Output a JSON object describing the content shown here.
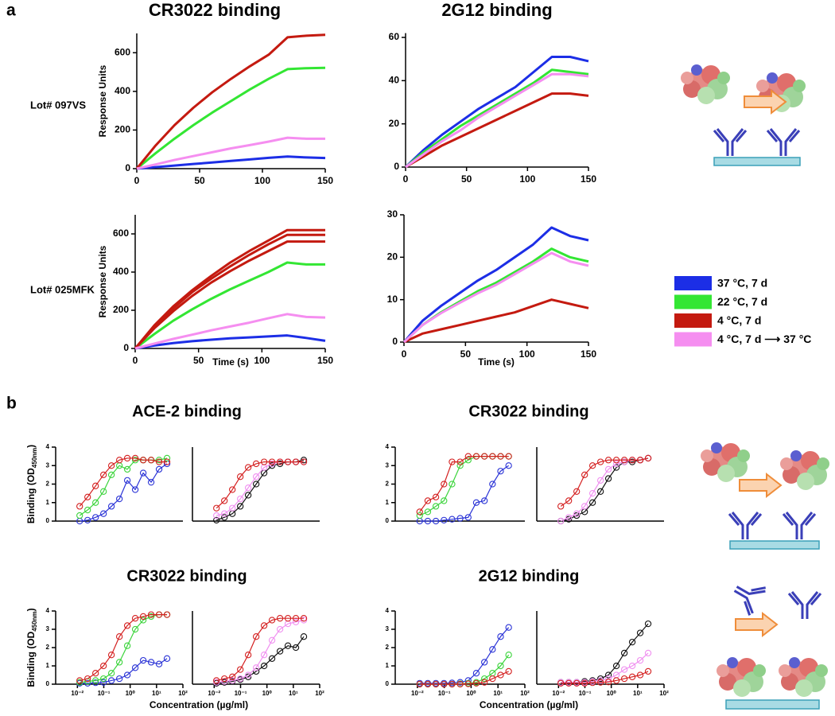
{
  "panel_labels": [
    "a",
    "b"
  ],
  "row_labels": [
    "Lot# 097VS",
    "Lot# 025MFK"
  ],
  "chart_data": [
    {
      "type": "line",
      "title": "CR3022 binding",
      "y_label": "Response Units",
      "x": [
        0,
        15,
        30,
        45,
        60,
        75,
        90,
        105,
        120,
        135,
        150
      ],
      "xlim": [
        0,
        150
      ],
      "xticks": [
        0,
        50,
        100,
        150
      ],
      "ylim": [
        0,
        700
      ],
      "yticks": [
        0,
        200,
        400,
        600
      ],
      "grid": false,
      "series": [
        {
          "name": "37 °C, 7 d",
          "color": "#1c2ee6",
          "values": [
            0,
            8,
            16,
            24,
            32,
            40,
            48,
            56,
            63,
            58,
            55
          ]
        },
        {
          "name": "22 °C, 7 d",
          "color": "#33e633",
          "values": [
            0,
            80,
            155,
            225,
            290,
            350,
            410,
            465,
            515,
            520,
            522
          ]
        },
        {
          "name": "4 °C, 7 d",
          "color": "#c41a10",
          "values": [
            0,
            120,
            225,
            315,
            395,
            465,
            530,
            590,
            680,
            688,
            693
          ]
        },
        {
          "name": "4 °C, 7 d ⟶ 37 °C",
          "color": "#f58ef0",
          "values": [
            0,
            22,
            45,
            65,
            85,
            105,
            122,
            140,
            160,
            155,
            155
          ]
        }
      ]
    },
    {
      "type": "line",
      "title": "2G12 binding",
      "x": [
        0,
        15,
        30,
        45,
        60,
        75,
        90,
        105,
        120,
        135,
        150
      ],
      "xlim": [
        0,
        150
      ],
      "xticks": [
        0,
        50,
        100,
        150
      ],
      "ylim": [
        0,
        62
      ],
      "yticks": [
        0,
        20,
        40,
        60
      ],
      "grid": false,
      "series": [
        {
          "color": "#1c2ee6",
          "values": [
            0,
            8,
            15,
            21,
            27,
            32,
            37,
            44,
            51,
            51,
            49
          ]
        },
        {
          "color": "#33e633",
          "values": [
            0,
            7,
            13,
            19,
            24,
            29,
            34,
            39,
            45,
            44,
            43
          ]
        },
        {
          "color": "#c41a10",
          "values": [
            0,
            5,
            10,
            14,
            18,
            22,
            26,
            30,
            34,
            34,
            33
          ]
        },
        {
          "color": "#f58ef0",
          "values": [
            0,
            6,
            12,
            17,
            23,
            28,
            33,
            38,
            43,
            43,
            42
          ]
        }
      ]
    },
    {
      "type": "line",
      "y_label": "Response Units",
      "x_label": "Time (s)",
      "x": [
        0,
        15,
        30,
        45,
        60,
        75,
        90,
        105,
        120,
        135,
        150
      ],
      "xlim": [
        0,
        150
      ],
      "xticks": [
        0,
        50,
        100,
        150
      ],
      "ylim": [
        0,
        700
      ],
      "yticks": [
        0,
        200,
        400,
        600
      ],
      "grid": false,
      "series": [
        {
          "color": "#1c2ee6",
          "values": [
            0,
            15,
            28,
            38,
            46,
            53,
            58,
            63,
            68,
            55,
            40
          ]
        },
        {
          "color": "#33e633",
          "values": [
            0,
            75,
            145,
            205,
            260,
            310,
            355,
            400,
            450,
            440,
            440
          ]
        },
        {
          "color": "#c41a10",
          "values": [
            0,
            120,
            220,
            305,
            380,
            450,
            510,
            565,
            620,
            620,
            620
          ]
        },
        {
          "color": "#c41a10",
          "values": [
            0,
            115,
            210,
            295,
            365,
            430,
            490,
            545,
            595,
            595,
            595
          ]
        },
        {
          "color": "#c41a10",
          "values": [
            0,
            105,
            195,
            275,
            345,
            405,
            460,
            510,
            560,
            560,
            560
          ]
        },
        {
          "color": "#f58ef0",
          "values": [
            0,
            25,
            50,
            72,
            95,
            115,
            135,
            158,
            180,
            165,
            162
          ]
        }
      ]
    },
    {
      "type": "line",
      "x_label": "Time (s)",
      "x": [
        0,
        15,
        30,
        45,
        60,
        75,
        90,
        105,
        120,
        135,
        150
      ],
      "xlim": [
        0,
        150
      ],
      "xticks": [
        0,
        50,
        100,
        150
      ],
      "ylim": [
        0,
        30
      ],
      "yticks": [
        0,
        10,
        20,
        30
      ],
      "grid": false,
      "series": [
        {
          "color": "#1c2ee6",
          "values": [
            0,
            5,
            8.5,
            11.5,
            14.5,
            17,
            20,
            23,
            27,
            25,
            24
          ]
        },
        {
          "color": "#33e633",
          "values": [
            0,
            4,
            7,
            9.5,
            12,
            14,
            16.5,
            19,
            22,
            20,
            19
          ]
        },
        {
          "color": "#c41a10",
          "values": [
            0,
            2,
            3,
            4,
            5,
            6,
            7,
            8.5,
            10,
            9,
            8
          ]
        },
        {
          "color": "#f58ef0",
          "values": [
            0,
            4,
            6.8,
            9.2,
            11.5,
            13.5,
            16,
            18.5,
            21,
            19,
            18
          ]
        }
      ]
    },
    {
      "type": "line",
      "title": "ACE-2 binding",
      "y_label": [
        "Binding (OD",
        "450nm",
        ")"
      ],
      "xscale": "log",
      "marker": "open-circle",
      "x": [
        0.0122,
        0.0244,
        0.0488,
        0.0977,
        0.195,
        0.391,
        0.781,
        1.56,
        3.13,
        6.25,
        12.5,
        25
      ],
      "xlim": [
        0.0015,
        100
      ],
      "ylim": [
        0,
        4
      ],
      "yticks": [
        0,
        1,
        2,
        3,
        4
      ],
      "grid": false,
      "series": [
        {
          "color": "#2a33d6",
          "values": [
            0.0,
            0.05,
            0.2,
            0.4,
            0.8,
            1.2,
            2.2,
            1.7,
            2.6,
            2.1,
            2.8,
            3.1
          ]
        },
        {
          "color": "#3bd43b",
          "values": [
            0.3,
            0.6,
            1.0,
            1.6,
            2.5,
            3.0,
            2.8,
            3.3,
            3.3,
            3.3,
            3.3,
            3.4
          ]
        },
        {
          "color": "#d42020",
          "values": [
            0.8,
            1.3,
            1.9,
            2.5,
            3.0,
            3.3,
            3.4,
            3.4,
            3.3,
            3.3,
            3.2,
            3.2
          ]
        }
      ]
    },
    {
      "type": "line",
      "xscale": "log",
      "marker": "open-circle",
      "x": [
        0.0122,
        0.0244,
        0.0488,
        0.0977,
        0.195,
        0.391,
        0.781,
        1.56,
        3.13,
        6.25,
        12.5,
        25
      ],
      "xlim": [
        0.0015,
        100
      ],
      "ylim": [
        0,
        4
      ],
      "grid": false,
      "series": [
        {
          "color": "#111111",
          "values": [
            0.05,
            0.2,
            0.4,
            0.8,
            1.4,
            2.0,
            2.6,
            3.0,
            3.1,
            3.2,
            3.2,
            3.3
          ]
        },
        {
          "color": "#f090f0",
          "values": [
            0.3,
            0.4,
            0.7,
            1.2,
            1.8,
            2.4,
            2.9,
            3.1,
            3.2,
            3.2,
            3.2,
            3.2
          ]
        },
        {
          "color": "#d42020",
          "values": [
            0.7,
            1.1,
            1.7,
            2.4,
            2.9,
            3.1,
            3.2,
            3.2,
            3.2,
            3.2,
            3.2,
            3.2
          ]
        }
      ]
    },
    {
      "type": "line",
      "title": "CR3022 binding",
      "xscale": "log",
      "marker": "open-circle",
      "x": [
        0.0122,
        0.0244,
        0.0488,
        0.0977,
        0.195,
        0.391,
        0.781,
        1.56,
        3.13,
        6.25,
        12.5,
        25
      ],
      "xlim": [
        0.0015,
        100
      ],
      "ylim": [
        0,
        4
      ],
      "yticks": [
        0,
        1,
        2,
        3,
        4
      ],
      "grid": false,
      "series": [
        {
          "color": "#2a33d6",
          "values": [
            0,
            0,
            0,
            0.05,
            0.1,
            0.15,
            0.2,
            1.0,
            1.1,
            2.0,
            2.7,
            3.0
          ]
        },
        {
          "color": "#3bd43b",
          "values": [
            0.3,
            0.5,
            0.8,
            1.1,
            2.0,
            3.0,
            3.3,
            3.5,
            3.5,
            3.5,
            3.5,
            3.5
          ]
        },
        {
          "color": "#d42020",
          "values": [
            0.5,
            1.1,
            1.3,
            2.0,
            3.2,
            3.2,
            3.5,
            3.5,
            3.5,
            3.5,
            3.5,
            3.5
          ]
        }
      ]
    },
    {
      "type": "line",
      "xscale": "log",
      "marker": "open-circle",
      "x": [
        0.0122,
        0.0244,
        0.0488,
        0.0977,
        0.195,
        0.391,
        0.781,
        1.56,
        3.13,
        6.25,
        12.5,
        25
      ],
      "xlim": [
        0.0015,
        100
      ],
      "ylim": [
        0,
        4
      ],
      "grid": false,
      "series": [
        {
          "color": "#111111",
          "values": [
            0.0,
            0.1,
            0.3,
            0.5,
            1.0,
            1.6,
            2.3,
            2.9,
            3.2,
            3.2,
            3.3,
            3.4
          ]
        },
        {
          "color": "#f090f0",
          "values": [
            0.0,
            0.2,
            0.4,
            0.8,
            1.5,
            2.2,
            2.8,
            3.1,
            3.2,
            3.3,
            3.3,
            3.4
          ]
        },
        {
          "color": "#d42020",
          "values": [
            0.8,
            1.1,
            1.6,
            2.5,
            3.0,
            3.2,
            3.3,
            3.3,
            3.3,
            3.3,
            3.3,
            3.4
          ]
        }
      ]
    },
    {
      "type": "line",
      "title": "CR3022 binding",
      "y_label": [
        "Binding (OD",
        "450nm",
        ")"
      ],
      "x_label": "Concentration (µg/ml)",
      "xscale": "log",
      "marker": "open-circle",
      "x": [
        0.0122,
        0.0244,
        0.0488,
        0.0977,
        0.195,
        0.391,
        0.781,
        1.56,
        3.13,
        6.25,
        12.5,
        25
      ],
      "xlim": [
        0.0015,
        100
      ],
      "ylim": [
        0,
        4
      ],
      "yticks": [
        0,
        1,
        2,
        3,
        4
      ],
      "grid": false,
      "xticks": [
        {
          "value": 0.01,
          "label": "10⁻²"
        },
        {
          "value": 0.1,
          "label": "10⁻¹"
        },
        {
          "value": 1,
          "label": "10⁰"
        },
        {
          "value": 10,
          "label": "10¹"
        },
        {
          "value": 100,
          "label": "10²"
        }
      ],
      "series": [
        {
          "color": "#2a33d6",
          "values": [
            0.05,
            0.05,
            0.08,
            0.1,
            0.2,
            0.3,
            0.5,
            0.9,
            1.3,
            1.2,
            1.1,
            1.4
          ]
        },
        {
          "color": "#3bd43b",
          "values": [
            0.1,
            0.15,
            0.2,
            0.3,
            0.6,
            1.2,
            2.1,
            3.0,
            3.5,
            3.7,
            3.8,
            3.8
          ]
        },
        {
          "color": "#d42020",
          "values": [
            0.2,
            0.3,
            0.6,
            1.0,
            1.6,
            2.6,
            3.2,
            3.6,
            3.7,
            3.8,
            3.8,
            3.8
          ]
        }
      ]
    },
    {
      "type": "line",
      "xscale": "log",
      "marker": "open-circle",
      "x": [
        0.0122,
        0.0244,
        0.0488,
        0.0977,
        0.195,
        0.391,
        0.781,
        1.56,
        3.13,
        6.25,
        12.5,
        25
      ],
      "xlim": [
        0.0015,
        100
      ],
      "ylim": [
        0,
        4
      ],
      "grid": false,
      "xticks": [
        {
          "value": 0.01,
          "label": "10⁻²"
        },
        {
          "value": 0.1,
          "label": "10⁻¹"
        },
        {
          "value": 1,
          "label": "10⁰"
        },
        {
          "value": 10,
          "label": "10¹"
        },
        {
          "value": 100,
          "label": "10²"
        }
      ],
      "series": [
        {
          "color": "#111111",
          "values": [
            0.05,
            0.1,
            0.15,
            0.25,
            0.4,
            0.7,
            1.0,
            1.4,
            1.8,
            2.1,
            2.0,
            2.6
          ]
        },
        {
          "color": "#f090f0",
          "values": [
            0.1,
            0.15,
            0.2,
            0.3,
            0.5,
            0.9,
            1.6,
            2.4,
            3.0,
            3.3,
            3.4,
            3.5
          ]
        },
        {
          "color": "#d42020",
          "values": [
            0.2,
            0.3,
            0.4,
            0.8,
            1.6,
            2.6,
            3.2,
            3.5,
            3.6,
            3.6,
            3.6,
            3.6
          ]
        }
      ]
    },
    {
      "type": "line",
      "title": "2G12 binding",
      "x_label": "Concentration (µg/ml)",
      "xscale": "log",
      "marker": "open-circle",
      "x": [
        0.0122,
        0.0244,
        0.0488,
        0.0977,
        0.195,
        0.391,
        0.781,
        1.56,
        3.13,
        6.25,
        12.5,
        25
      ],
      "xlim": [
        0.0015,
        100
      ],
      "ylim": [
        0,
        4
      ],
      "yticks": [
        0,
        1,
        2,
        3,
        4
      ],
      "grid": false,
      "xticks": [
        {
          "value": 0.01,
          "label": "10⁻²"
        },
        {
          "value": 0.1,
          "label": "10⁻¹"
        },
        {
          "value": 1,
          "label": "10⁰"
        },
        {
          "value": 10,
          "label": "10¹"
        },
        {
          "value": 100,
          "label": "10²"
        }
      ],
      "series": [
        {
          "color": "#2a33d6",
          "values": [
            0.05,
            0.05,
            0.05,
            0.05,
            0.07,
            0.1,
            0.2,
            0.6,
            1.2,
            1.9,
            2.6,
            3.1
          ]
        },
        {
          "color": "#3bd43b",
          "values": [
            0,
            0,
            0,
            0,
            0,
            0.02,
            0.05,
            0.1,
            0.3,
            0.6,
            1.0,
            1.6
          ]
        },
        {
          "color": "#d42020",
          "values": [
            0,
            0,
            0,
            0,
            0,
            0,
            0.02,
            0.05,
            0.1,
            0.3,
            0.5,
            0.7
          ]
        }
      ]
    },
    {
      "type": "line",
      "xscale": "log",
      "marker": "open-circle",
      "x": [
        0.0122,
        0.0244,
        0.0488,
        0.0977,
        0.195,
        0.391,
        0.781,
        1.56,
        3.13,
        6.25,
        12.5,
        25
      ],
      "xlim": [
        0.0015,
        100
      ],
      "ylim": [
        0,
        4
      ],
      "grid": false,
      "xticks": [
        {
          "value": 0.01,
          "label": "10⁻²"
        },
        {
          "value": 0.1,
          "label": "10⁻¹"
        },
        {
          "value": 1,
          "label": "10⁰"
        },
        {
          "value": 10,
          "label": "10¹"
        },
        {
          "value": 100,
          "label": "10²"
        }
      ],
      "series": [
        {
          "color": "#111111",
          "values": [
            0.1,
            0.1,
            0.1,
            0.15,
            0.2,
            0.3,
            0.5,
            1.0,
            1.7,
            2.3,
            2.8,
            3.3
          ]
        },
        {
          "color": "#f090f0",
          "values": [
            0.1,
            0.1,
            0.1,
            0.1,
            0.15,
            0.2,
            0.3,
            0.5,
            0.8,
            1.0,
            1.3,
            1.7
          ]
        },
        {
          "color": "#d42020",
          "values": [
            0.05,
            0.05,
            0.05,
            0.05,
            0.08,
            0.1,
            0.12,
            0.2,
            0.3,
            0.4,
            0.5,
            0.7
          ]
        }
      ]
    }
  ]
}
